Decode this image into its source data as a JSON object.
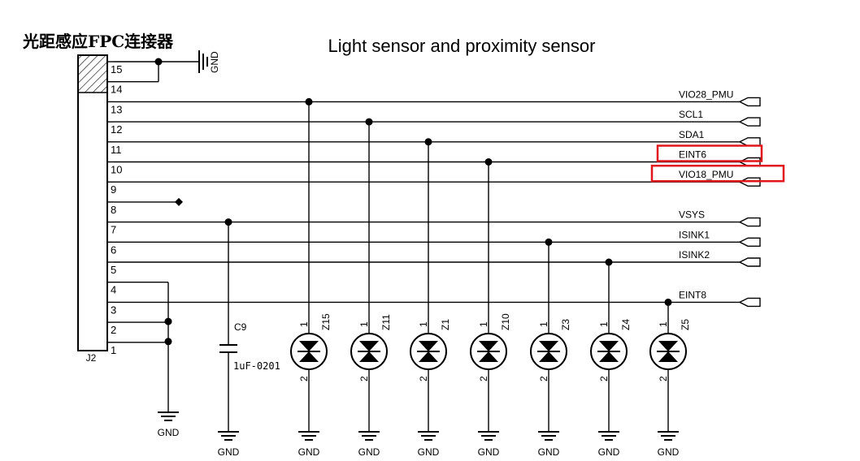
{
  "title": "Light sensor and proximity sensor",
  "connector": {
    "title": "光距感应FPC连接器",
    "ref": "J2",
    "pins": [
      "15",
      "14",
      "13",
      "12",
      "11",
      "10",
      "9",
      "8",
      "7",
      "6",
      "5",
      "4",
      "3",
      "2",
      "1"
    ]
  },
  "nets": [
    {
      "pin": "13",
      "label": "VIO28_PMU",
      "highlighted": false
    },
    {
      "pin": "12",
      "label": "SCL1",
      "highlighted": false
    },
    {
      "pin": "11",
      "label": "SDA1",
      "highlighted": false
    },
    {
      "pin": "10",
      "label": "EINT6",
      "highlighted": true
    },
    {
      "pin": "9",
      "label": "VIO18_PMU",
      "highlighted": true
    },
    {
      "pin": "7",
      "label": "VSYS",
      "highlighted": false
    },
    {
      "pin": "6",
      "label": "ISINK1",
      "highlighted": false
    },
    {
      "pin": "5",
      "label": "ISINK2",
      "highlighted": false
    },
    {
      "pin": "3",
      "label": "EINT8",
      "highlighted": false
    }
  ],
  "ground_label": "GND",
  "capacitor": {
    "ref": "C9",
    "value": "1uF-0201",
    "net": "VSYS"
  },
  "diodes": [
    {
      "ref": "Z15",
      "net": "VIO28_PMU",
      "pin_top": "1",
      "pin_bottom": "2"
    },
    {
      "ref": "Z11",
      "net": "SCL1",
      "pin_top": "1",
      "pin_bottom": "2"
    },
    {
      "ref": "Z1",
      "net": "SDA1",
      "pin_top": "1",
      "pin_bottom": "2"
    },
    {
      "ref": "Z10",
      "net": "EINT6",
      "pin_top": "1",
      "pin_bottom": "2"
    },
    {
      "ref": "Z3",
      "net": "ISINK1",
      "pin_top": "1",
      "pin_bottom": "2"
    },
    {
      "ref": "Z4",
      "net": "ISINK2",
      "pin_top": "1",
      "pin_bottom": "2"
    },
    {
      "ref": "Z5",
      "net": "EINT8",
      "pin_top": "1",
      "pin_bottom": "2"
    }
  ],
  "colors": {
    "wire": "#000000",
    "highlight": "#e0161b",
    "background": "#ffffff"
  }
}
